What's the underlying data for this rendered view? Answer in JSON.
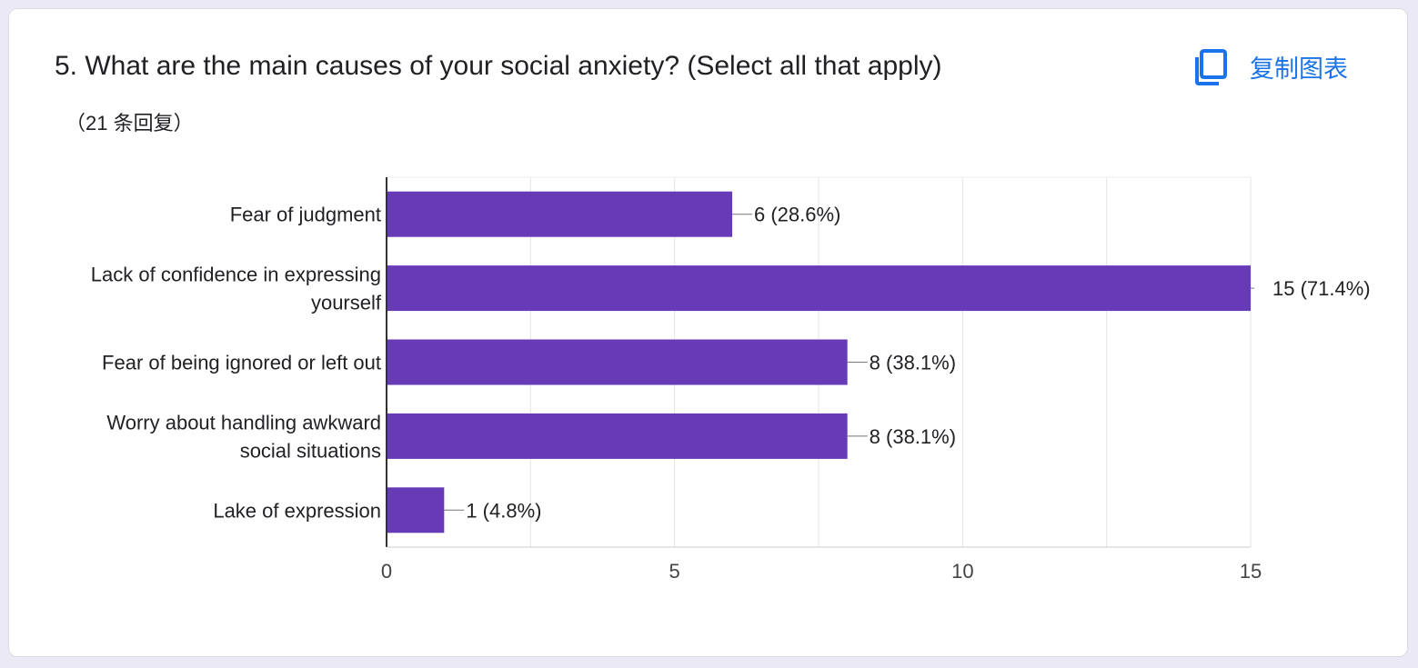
{
  "header": {
    "title": "5.  What are the main causes of your social anxiety? (Select all that apply)",
    "response_count": "（21 条回复）",
    "copy_label": "复制图表",
    "copy_icon": "copy-icon"
  },
  "colors": {
    "bar": "#673ab7",
    "accent": "#1a73e8"
  },
  "chart_data": {
    "type": "bar",
    "orientation": "horizontal",
    "categories": [
      [
        "Fear of judgment"
      ],
      [
        "Lack of confidence in expressing",
        "yourself"
      ],
      [
        "Fear of being ignored or left out"
      ],
      [
        "Worry about handling awkward",
        "social situations"
      ],
      [
        "Lake of expression"
      ]
    ],
    "values": [
      6,
      15,
      8,
      8,
      1
    ],
    "data_labels": [
      "6 (28.6%)",
      "15 (71.4%)",
      "8 (38.1%)",
      "8 (38.1%)",
      "1 (4.8%)"
    ],
    "xlim": [
      0,
      15
    ],
    "xticks": [
      0,
      5,
      10,
      15
    ],
    "grid": true
  }
}
